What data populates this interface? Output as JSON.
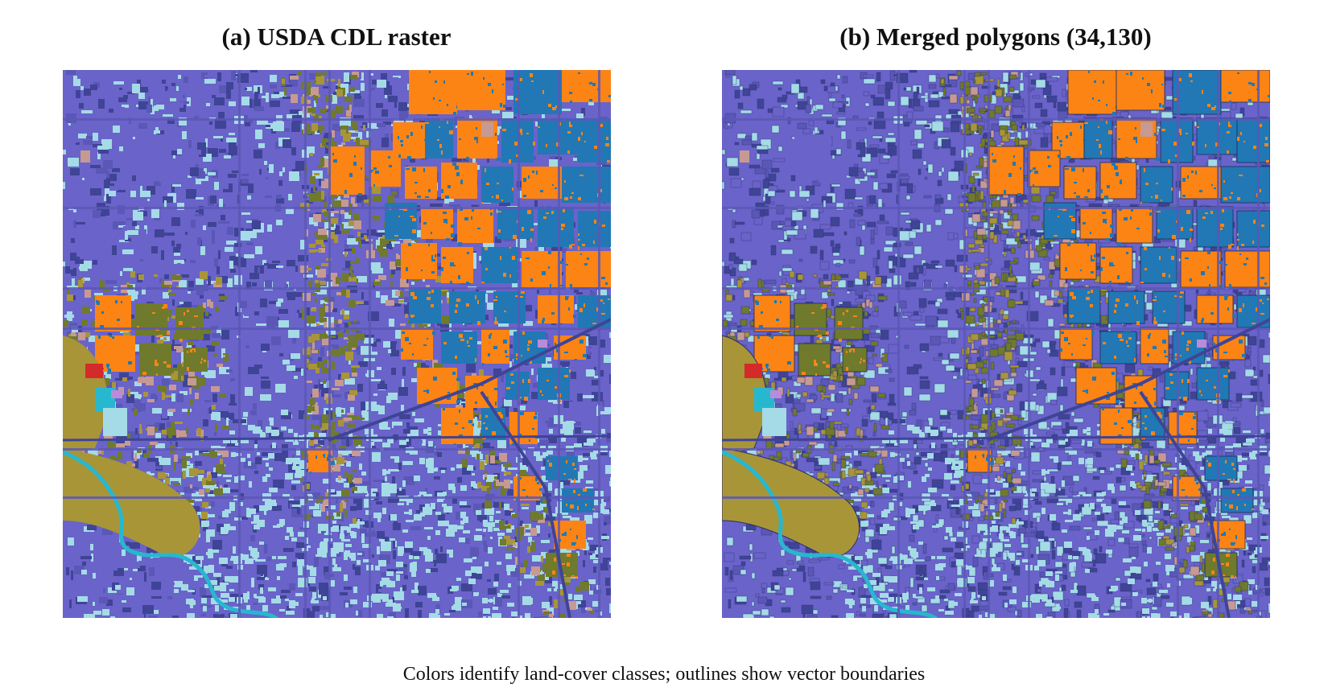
{
  "figure": {
    "panel_a": {
      "title": "(a) USDA CDL raster"
    },
    "panel_b": {
      "title": "(b) Merged polygons (34,130)"
    },
    "caption": "Colors identify land-cover classes; outlines show vector boundaries"
  },
  "colors": {
    "developed_dark": "#3f4496",
    "developed_mid": "#6a63c9",
    "developed_light": "#5a57b6",
    "open_space": "#a4dbe6",
    "corn": "#fb8415",
    "soybeans": "#2178b4",
    "forest": "#6f7a2c",
    "grass": "#a89538",
    "water": "#27b7cf",
    "other": "#c69a92",
    "red_patch": "#d42a2a",
    "orchid": "#b98cd9"
  }
}
